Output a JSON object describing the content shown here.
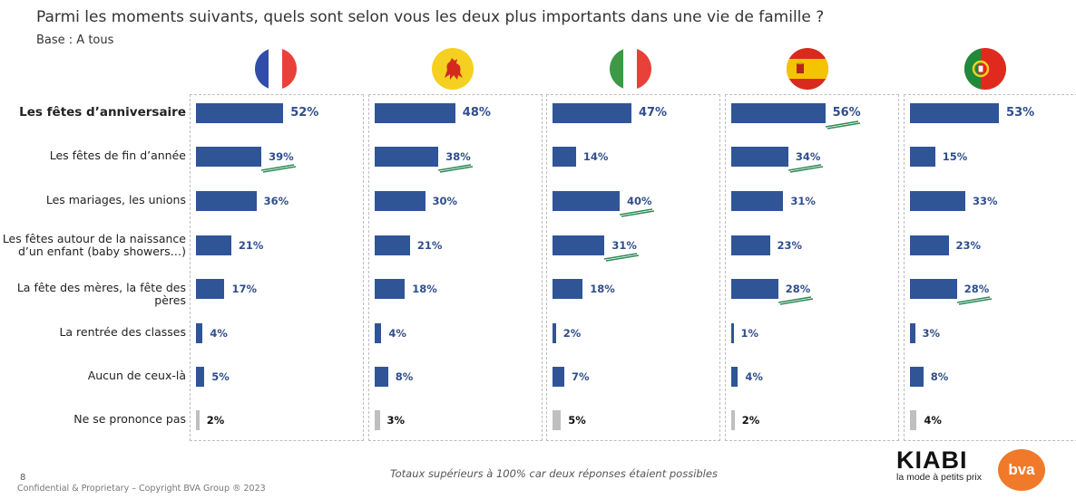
{
  "header": {
    "title": "Parmi les moments suivants, quels sont selon vous les deux plus importants dans une vie de famille ?",
    "base": "Base : A tous"
  },
  "colors": {
    "bar": "#2f5597",
    "bar_nsp": "#bfbfbf",
    "sig": "#2e8b57",
    "value_text": "#2f4e8c"
  },
  "chart_data": {
    "type": "bar",
    "orientation": "horizontal",
    "categories": [
      "Les fêtes d’anniversaire",
      "Les fêtes de fin d’année",
      "Les mariages, les unions",
      "Les fêtes autour de la naissance d’un enfant (baby showers…)",
      "La fête des mères, la fête des pères",
      "La rentrée des classes",
      "Aucun de ceux-là",
      "Ne se prononce pas"
    ],
    "series": [
      {
        "flag": "france-flag-icon",
        "values": [
          52,
          39,
          36,
          21,
          17,
          4,
          5,
          2
        ],
        "labels": [
          "52%",
          "39%",
          "36%",
          "21%",
          "17%",
          "4%",
          "5%",
          "2%"
        ],
        "significant": [
          false,
          true,
          false,
          false,
          false,
          false,
          false,
          false
        ]
      },
      {
        "flag": "wallonia-flag-icon",
        "values": [
          48,
          38,
          30,
          21,
          18,
          4,
          8,
          3
        ],
        "labels": [
          "48%",
          "38%",
          "30%",
          "21%",
          "18%",
          "4%",
          "8%",
          "3%"
        ],
        "significant": [
          false,
          true,
          false,
          false,
          false,
          false,
          false,
          false
        ]
      },
      {
        "flag": "italy-flag-icon",
        "values": [
          47,
          14,
          40,
          31,
          18,
          2,
          7,
          5
        ],
        "labels": [
          "47%",
          "14%",
          "40%",
          "31%",
          "18%",
          "2%",
          "7%",
          "5%"
        ],
        "significant": [
          false,
          false,
          true,
          true,
          false,
          false,
          false,
          false
        ]
      },
      {
        "flag": "spain-flag-icon",
        "values": [
          56,
          34,
          31,
          23,
          28,
          1,
          4,
          2
        ],
        "labels": [
          "56%",
          "34%",
          "31%",
          "23%",
          "28%",
          "1%",
          "4%",
          "2%"
        ],
        "significant": [
          true,
          true,
          false,
          false,
          true,
          false,
          false,
          false
        ]
      },
      {
        "flag": "portugal-flag-icon",
        "values": [
          53,
          15,
          33,
          23,
          28,
          3,
          8,
          4
        ],
        "labels": [
          "53%",
          "15%",
          "33%",
          "23%",
          "28%",
          "3%",
          "8%",
          "4%"
        ],
        "significant": [
          false,
          false,
          false,
          false,
          true,
          false,
          false,
          false
        ]
      }
    ]
  },
  "footer": {
    "note": "Totaux supérieurs à 100% car deux réponses étaient possibles",
    "page": "8",
    "confidential": "Confidential & Proprietary – Copyright BVA Group ® 2023",
    "kiabi": "KIABI",
    "kiabi_tagline": "la mode à petits prix",
    "bva": "bva"
  }
}
